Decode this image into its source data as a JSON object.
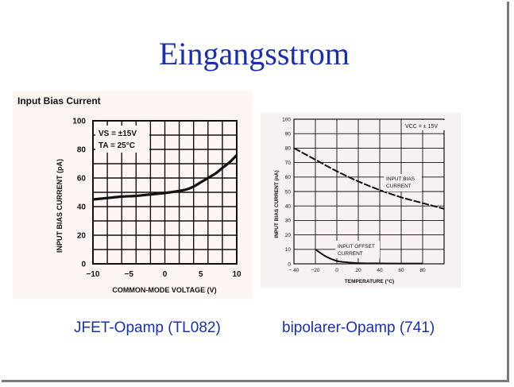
{
  "slide": {
    "title": "Eingangsstrom",
    "captions": [
      "JFET-Opamp (TL082)",
      "bipolarer-Opamp (741)"
    ]
  },
  "colors": {
    "title": "#1a2fb0",
    "caption": "#1a2fb0",
    "curve": "#111111",
    "grid": "#111111"
  },
  "chart_data": [
    {
      "type": "line",
      "title": "Input Bias Current",
      "xlabel": "COMMON-MODE VOLTAGE (V)",
      "ylabel": "INPUT BIAS CURRENT (pA)",
      "xlim": [
        -10,
        10
      ],
      "ylim": [
        0,
        100
      ],
      "x_ticks": [
        -10,
        -5,
        0,
        5,
        10
      ],
      "y_ticks": [
        0,
        20,
        40,
        60,
        80,
        100
      ],
      "x_tick_labels": [
        "−10",
        "−5",
        "0",
        "5",
        "10"
      ],
      "y_tick_labels": [
        "0",
        "20",
        "40",
        "60",
        "80",
        "100"
      ],
      "grid": true,
      "annotations": [
        "VS = ±15V",
        "TA = 25°C"
      ],
      "series": [
        {
          "x": [
            -10,
            -8,
            -6,
            -4,
            -2,
            0,
            2,
            3,
            4,
            5,
            6,
            7,
            8,
            9,
            10
          ],
          "y": [
            45,
            46,
            47,
            47.5,
            48.5,
            49.5,
            51,
            52,
            54,
            57,
            60,
            63,
            67,
            71,
            76
          ]
        }
      ]
    },
    {
      "type": "line",
      "title": "",
      "xlabel": "TEMPERATURE (°C)",
      "ylabel": "INPUT BIAS CURRENT (nA)",
      "xlim": [
        -40,
        100
      ],
      "ylim": [
        0,
        100
      ],
      "x_ticks": [
        -40,
        -20,
        0,
        20,
        40,
        60,
        80
      ],
      "y_ticks": [
        0,
        10,
        20,
        30,
        40,
        50,
        60,
        70,
        80,
        90,
        100
      ],
      "x_tick_labels": [
        "− 40",
        "−20",
        "0",
        "20",
        "40",
        "60",
        "80"
      ],
      "y_tick_labels": [
        "0",
        "10",
        "20",
        "30",
        "40",
        "50",
        "60",
        "70",
        "80",
        "90",
        "100"
      ],
      "grid": true,
      "annotations": [
        "VCC = ± 15V"
      ],
      "series": [
        {
          "name": "INPUT BIAS CURRENT",
          "x": [
            -40,
            -20,
            0,
            20,
            40,
            60,
            80,
            100
          ],
          "y": [
            80,
            72,
            64,
            57,
            51,
            46,
            42,
            38
          ]
        },
        {
          "name": "INPUT OFFSET CURRENT",
          "x": [
            -20,
            -10,
            0,
            10,
            20,
            40,
            60,
            80
          ],
          "y": [
            10,
            5,
            2,
            1,
            0.5,
            0.3,
            0.2,
            0.2
          ]
        }
      ],
      "series_labels": [
        "INPUT BIAS",
        "CURRENT",
        "INPUT OFFSET",
        "CURRENT"
      ]
    }
  ]
}
